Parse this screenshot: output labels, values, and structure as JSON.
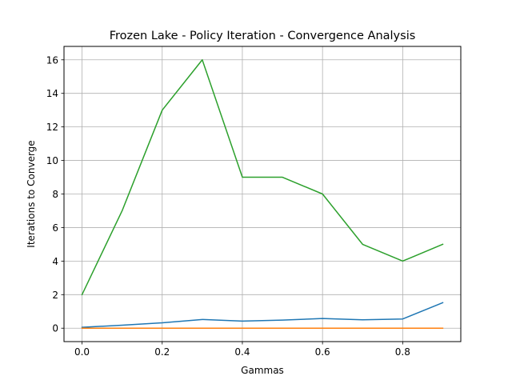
{
  "chart_data": {
    "type": "line",
    "title": "Frozen Lake - Policy Iteration - Convergence Analysis",
    "xlabel": "Gammas",
    "ylabel": "Iterations to Converge",
    "x": [
      0.0,
      0.1,
      0.2,
      0.3,
      0.4,
      0.5,
      0.6,
      0.7,
      0.8,
      0.9
    ],
    "xlim": [
      -0.045,
      0.945
    ],
    "ylim": [
      -0.8,
      16.8
    ],
    "xticks": [
      0.0,
      0.2,
      0.4,
      0.6,
      0.8
    ],
    "xtick_labels": [
      "0.0",
      "0.2",
      "0.4",
      "0.6",
      "0.8"
    ],
    "yticks": [
      0,
      2,
      4,
      6,
      8,
      10,
      12,
      14,
      16
    ],
    "ytick_labels": [
      "0",
      "2",
      "4",
      "6",
      "8",
      "10",
      "12",
      "14",
      "16"
    ],
    "grid": true,
    "legend": "none",
    "series": [
      {
        "color": "#1f77b4",
        "values": [
          0.05,
          0.18,
          0.32,
          0.52,
          0.42,
          0.48,
          0.58,
          0.5,
          0.55,
          1.52
        ]
      },
      {
        "color": "#ff7f0e",
        "values": [
          0.0,
          0.0,
          0.0,
          0.0,
          0.0,
          0.0,
          0.0,
          0.0,
          0.0,
          0.0
        ]
      },
      {
        "color": "#2ca02c",
        "values": [
          2,
          7,
          13,
          16,
          9,
          9,
          8,
          5,
          4,
          5
        ]
      }
    ]
  }
}
